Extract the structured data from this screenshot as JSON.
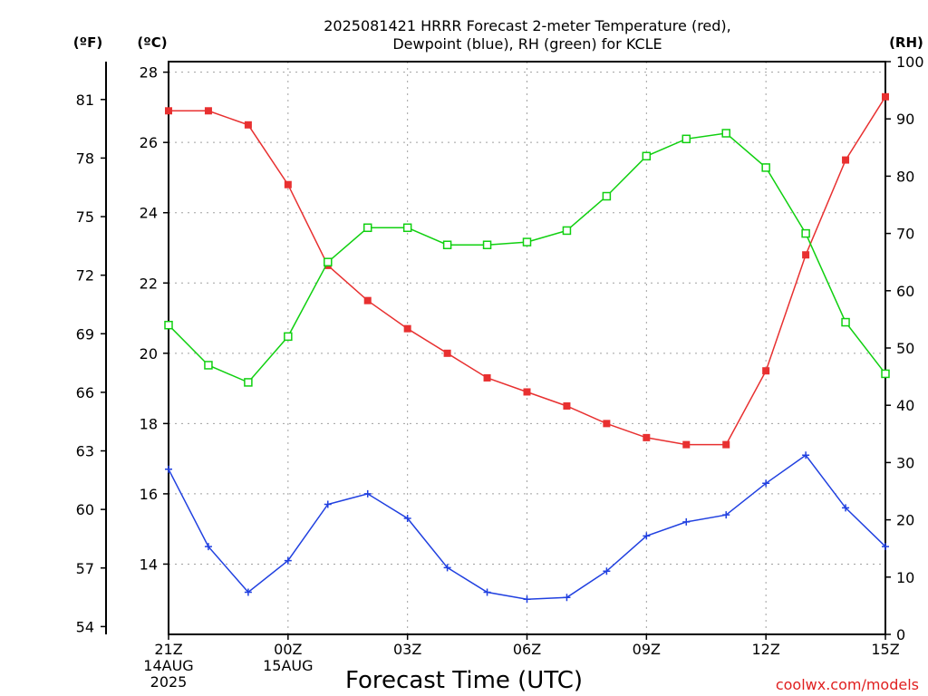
{
  "chart_data": {
    "type": "line",
    "title_line1": "2025081421 HRRR Forecast 2-meter Temperature (red),",
    "title_line2": "Dewpoint (blue), RH (green) for KCLE",
    "xlabel": "Forecast Time (UTC)",
    "unit_f": "(ºF)",
    "unit_c": "(ºC)",
    "unit_rh": "(RH)",
    "watermark": "coolwx.com/models",
    "x_hours": [
      0,
      1,
      2,
      3,
      4,
      5,
      6,
      7,
      8,
      9,
      10,
      11,
      12,
      13,
      14,
      15,
      16,
      17,
      18
    ],
    "xlim": [
      0,
      18
    ],
    "x_tick_labels": [
      {
        "hour": 0,
        "lines": [
          "21Z",
          "14AUG",
          "2025"
        ]
      },
      {
        "hour": 3,
        "lines": [
          "00Z",
          "15AUG"
        ]
      },
      {
        "hour": 6,
        "lines": [
          "03Z"
        ]
      },
      {
        "hour": 9,
        "lines": [
          "06Z"
        ]
      },
      {
        "hour": 12,
        "lines": [
          "09Z"
        ]
      },
      {
        "hour": 15,
        "lines": [
          "12Z"
        ]
      },
      {
        "hour": 18,
        "lines": [
          "15Z"
        ]
      }
    ],
    "ylim_c": [
      12.0,
      28.3
    ],
    "ylim_rh": [
      0,
      100
    ],
    "celsius_ticks": [
      14,
      16,
      18,
      20,
      22,
      24,
      26,
      28
    ],
    "fahrenheit_ticks": [
      54,
      57,
      60,
      63,
      66,
      69,
      72,
      75,
      78,
      81
    ],
    "rh_ticks": [
      0,
      10,
      20,
      30,
      40,
      50,
      60,
      70,
      80,
      90,
      100
    ],
    "grid": true,
    "colors": {
      "temperature": "#e83030",
      "dewpoint": "#2040e0",
      "rh": "#10d010",
      "grid": "#a0a0a0",
      "axis": "#000000"
    },
    "series": [
      {
        "key": "temperature",
        "axis": "celsius",
        "marker": "square-filled",
        "values": [
          26.9,
          26.9,
          26.5,
          24.8,
          22.5,
          21.5,
          20.7,
          20.0,
          19.3,
          18.9,
          18.5,
          18.0,
          17.6,
          17.4,
          17.4,
          19.5,
          22.8,
          25.5,
          27.3
        ]
      },
      {
        "key": "dewpoint",
        "axis": "celsius",
        "marker": "plus",
        "values": [
          16.7,
          14.5,
          13.2,
          14.1,
          15.7,
          16.0,
          15.3,
          13.9,
          13.2,
          13.0,
          13.05,
          13.8,
          14.8,
          15.2,
          15.4,
          16.3,
          17.1,
          15.6,
          14.5
        ]
      },
      {
        "key": "rh",
        "axis": "rh",
        "marker": "square-open",
        "values": [
          54,
          47,
          44,
          52,
          65,
          71,
          71,
          68,
          68,
          68.5,
          70.5,
          76.5,
          83.5,
          86.5,
          87.5,
          81.5,
          70,
          54.5,
          45.5
        ]
      }
    ]
  }
}
